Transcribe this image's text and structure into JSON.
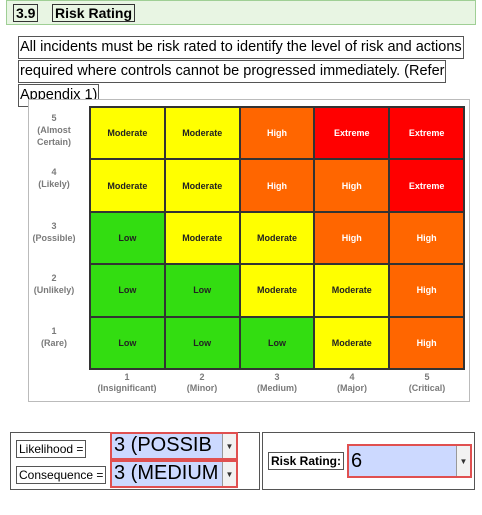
{
  "section": {
    "number": "3.9",
    "title": "Risk Rating"
  },
  "intro_lines": [
    "All incidents must be risk rated to identify the level of risk and actions",
    "required where controls cannot be progressed immediately. (Refer",
    "Appendix 1)"
  ],
  "matrix": {
    "likelihood_rows": [
      {
        "n": "5",
        "label": "(Almost Certain)"
      },
      {
        "n": "4",
        "label": "(Likely)"
      },
      {
        "n": "3",
        "label": "(Possible)"
      },
      {
        "n": "2",
        "label": "(Unlikely)"
      },
      {
        "n": "1",
        "label": "(Rare)"
      }
    ],
    "consequence_cols": [
      {
        "n": "1",
        "label": "(Insignificant)"
      },
      {
        "n": "2",
        "label": "(Minor)"
      },
      {
        "n": "3",
        "label": "(Medium)"
      },
      {
        "n": "4",
        "label": "(Major)"
      },
      {
        "n": "5",
        "label": "(Critical)"
      }
    ],
    "cells": [
      [
        "Moderate",
        "Moderate",
        "High",
        "Extreme",
        "Extreme"
      ],
      [
        "Moderate",
        "Moderate",
        "High",
        "High",
        "Extreme"
      ],
      [
        "Low",
        "Moderate",
        "Moderate",
        "High",
        "High"
      ],
      [
        "Low",
        "Low",
        "Moderate",
        "Moderate",
        "High"
      ],
      [
        "Low",
        "Low",
        "Low",
        "Moderate",
        "High"
      ]
    ],
    "colors": {
      "Low": "#33dd11",
      "Moderate": "#ffff00",
      "High": "#ff6600",
      "Extreme": "#ff0000"
    }
  },
  "form": {
    "likelihood_label": "Likelihood =",
    "likelihood_value": "3 (POSSIB",
    "consequence_label": "Consequence =",
    "consequence_value": "3 (MEDIUM",
    "risk_label": "Risk Rating:",
    "risk_value": "6"
  }
}
